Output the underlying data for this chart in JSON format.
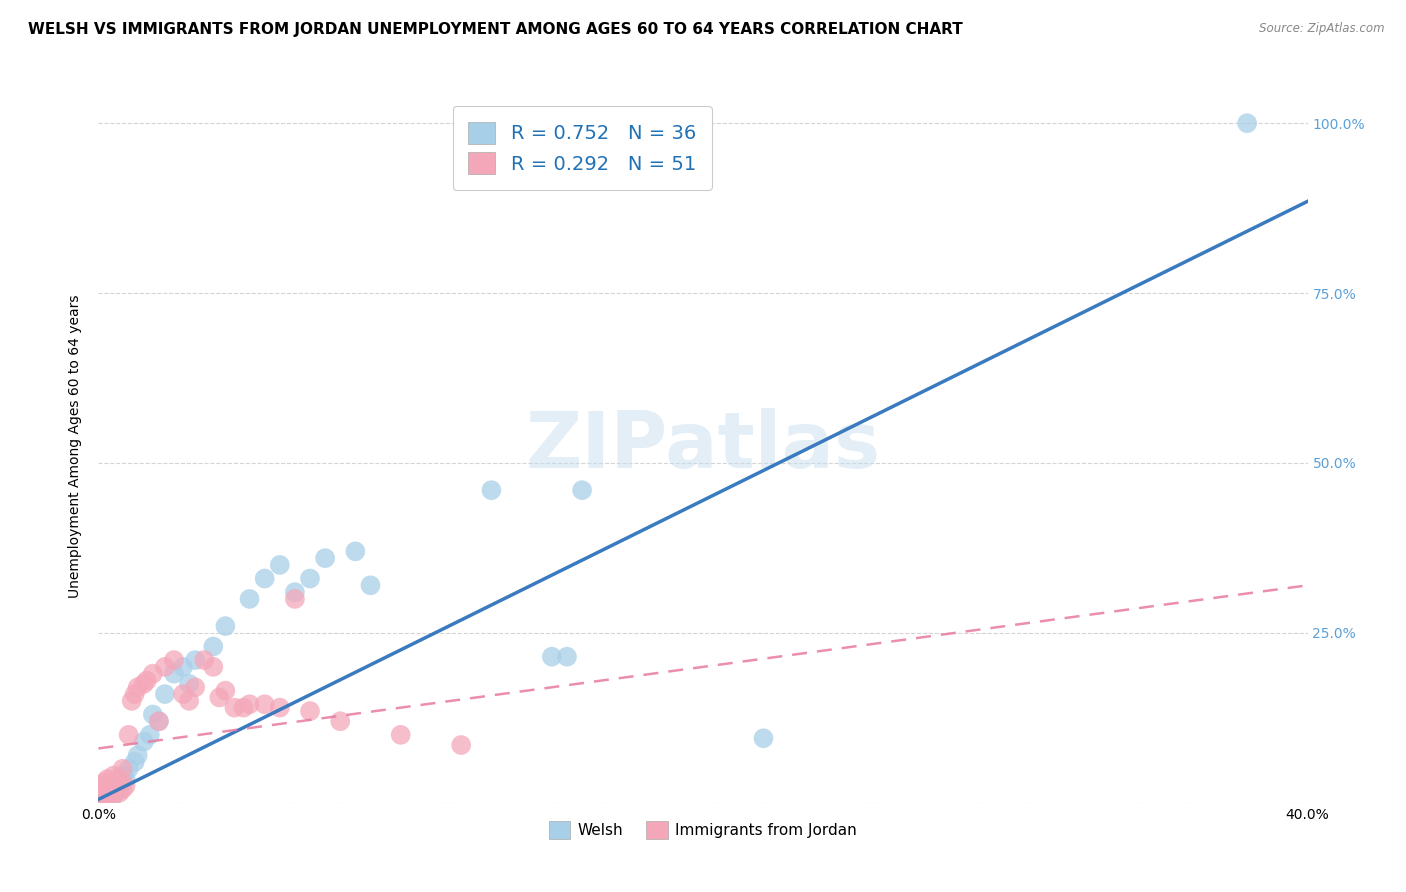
{
  "title": "WELSH VS IMMIGRANTS FROM JORDAN UNEMPLOYMENT AMONG AGES 60 TO 64 YEARS CORRELATION CHART",
  "source": "Source: ZipAtlas.com",
  "ylabel": "Unemployment Among Ages 60 to 64 years",
  "xlim": [
    0.0,
    0.4
  ],
  "ylim": [
    0.0,
    1.05
  ],
  "xticks": [
    0.0,
    0.05,
    0.1,
    0.15,
    0.2,
    0.25,
    0.3,
    0.35,
    0.4
  ],
  "xticklabels": [
    "0.0%",
    "",
    "",
    "",
    "",
    "",
    "",
    "",
    "40.0%"
  ],
  "ytick_positions": [
    0.0,
    0.25,
    0.5,
    0.75,
    1.0
  ],
  "yticklabels": [
    "",
    "25.0%",
    "50.0%",
    "75.0%",
    "100.0%"
  ],
  "welsh_color": "#a8cfe8",
  "jordan_color": "#f4a7b9",
  "welsh_line_color": "#3a7abf",
  "jordan_line_color": "#e87aa0",
  "R_welsh": 0.752,
  "N_welsh": 36,
  "R_jordan": 0.292,
  "N_jordan": 51,
  "background_color": "#ffffff",
  "grid_color": "#d0d0d0",
  "welsh_scatter_x": [
    0.002,
    0.003,
    0.004,
    0.005,
    0.006,
    0.007,
    0.008,
    0.009,
    0.01,
    0.012,
    0.013,
    0.015,
    0.017,
    0.018,
    0.02,
    0.022,
    0.025,
    0.028,
    0.03,
    0.032,
    0.038,
    0.042,
    0.05,
    0.055,
    0.06,
    0.065,
    0.07,
    0.075,
    0.085,
    0.09,
    0.13,
    0.15,
    0.155,
    0.16,
    0.22,
    0.38
  ],
  "welsh_scatter_y": [
    0.02,
    0.015,
    0.025,
    0.01,
    0.03,
    0.025,
    0.04,
    0.035,
    0.05,
    0.06,
    0.07,
    0.09,
    0.1,
    0.13,
    0.12,
    0.16,
    0.19,
    0.2,
    0.175,
    0.21,
    0.23,
    0.26,
    0.3,
    0.33,
    0.35,
    0.31,
    0.33,
    0.36,
    0.37,
    0.32,
    0.46,
    0.215,
    0.215,
    0.46,
    0.095,
    1.0
  ],
  "jordan_scatter_x": [
    0.001,
    0.001,
    0.001,
    0.001,
    0.001,
    0.002,
    0.002,
    0.002,
    0.002,
    0.003,
    0.003,
    0.003,
    0.004,
    0.004,
    0.005,
    0.005,
    0.005,
    0.006,
    0.006,
    0.007,
    0.007,
    0.008,
    0.008,
    0.009,
    0.01,
    0.011,
    0.012,
    0.013,
    0.015,
    0.016,
    0.018,
    0.02,
    0.022,
    0.025,
    0.028,
    0.03,
    0.032,
    0.035,
    0.038,
    0.04,
    0.042,
    0.045,
    0.048,
    0.05,
    0.055,
    0.06,
    0.065,
    0.07,
    0.08,
    0.1,
    0.12
  ],
  "jordan_scatter_y": [
    0.005,
    0.01,
    0.015,
    0.02,
    0.025,
    0.008,
    0.012,
    0.018,
    0.03,
    0.01,
    0.02,
    0.035,
    0.015,
    0.025,
    0.012,
    0.02,
    0.04,
    0.018,
    0.03,
    0.015,
    0.035,
    0.02,
    0.05,
    0.025,
    0.1,
    0.15,
    0.16,
    0.17,
    0.175,
    0.18,
    0.19,
    0.12,
    0.2,
    0.21,
    0.16,
    0.15,
    0.17,
    0.21,
    0.2,
    0.155,
    0.165,
    0.14,
    0.14,
    0.145,
    0.145,
    0.14,
    0.3,
    0.135,
    0.12,
    0.1,
    0.085
  ],
  "watermark_text": "ZIPatlas",
  "title_fontsize": 11,
  "axis_label_fontsize": 10,
  "tick_fontsize": 10,
  "right_ytick_color": "#5aa0d8",
  "welsh_line_slope": 2.2,
  "welsh_line_intercept": 0.005,
  "jordan_line_slope": 0.6,
  "jordan_line_intercept": 0.08
}
